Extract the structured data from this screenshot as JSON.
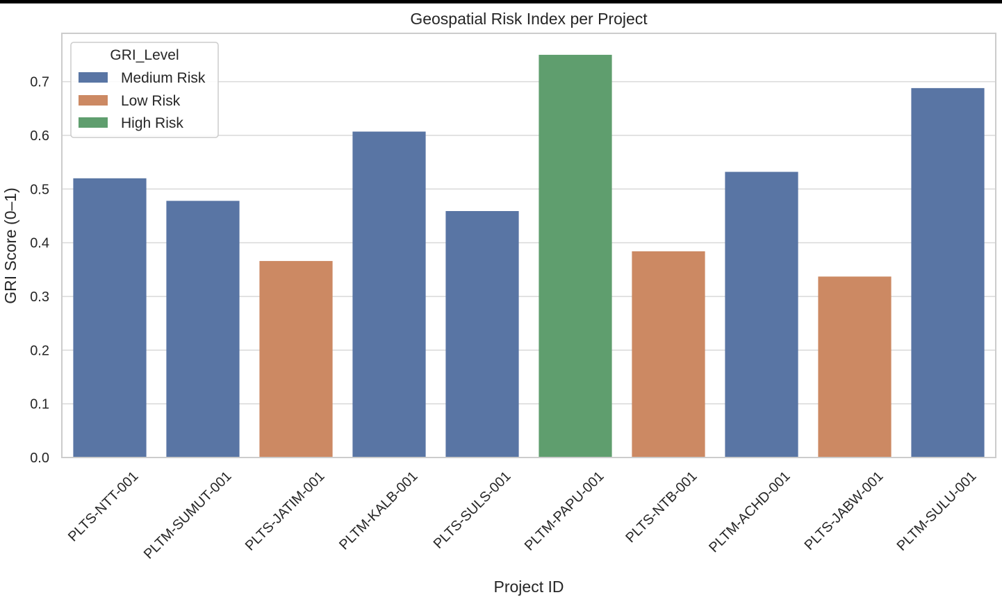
{
  "chart_data": {
    "type": "bar",
    "title": "Geospatial Risk Index per Project",
    "xlabel": "Project ID",
    "ylabel": "GRI Score (0–1)",
    "ylim": [
      0,
      0.79
    ],
    "yticks": [
      "0.0",
      "0.1",
      "0.2",
      "0.3",
      "0.4",
      "0.5",
      "0.6",
      "0.7"
    ],
    "grid": true,
    "categories": [
      "PLTS-NTT-001",
      "PLTM-SUMUT-001",
      "PLTS-JATIM-001",
      "PLTM-KALB-001",
      "PLTS-SULS-001",
      "PLTM-PAPU-001",
      "PLTS-NTB-001",
      "PLTM-ACHD-001",
      "PLTS-JABW-001",
      "PLTM-SULU-001"
    ],
    "values": [
      0.52,
      0.478,
      0.366,
      0.607,
      0.459,
      0.75,
      0.384,
      0.532,
      0.337,
      0.688
    ],
    "levels": [
      "Medium Risk",
      "Medium Risk",
      "Low Risk",
      "Medium Risk",
      "Medium Risk",
      "High Risk",
      "Low Risk",
      "Medium Risk",
      "Low Risk",
      "Medium Risk"
    ],
    "legend": {
      "title": "GRI_Level",
      "placement": "top-left",
      "entries": [
        {
          "label": "Medium Risk",
          "color": "#5975a4"
        },
        {
          "label": "Low Risk",
          "color": "#cc8963"
        },
        {
          "label": "High Risk",
          "color": "#5f9e6e"
        }
      ]
    }
  }
}
